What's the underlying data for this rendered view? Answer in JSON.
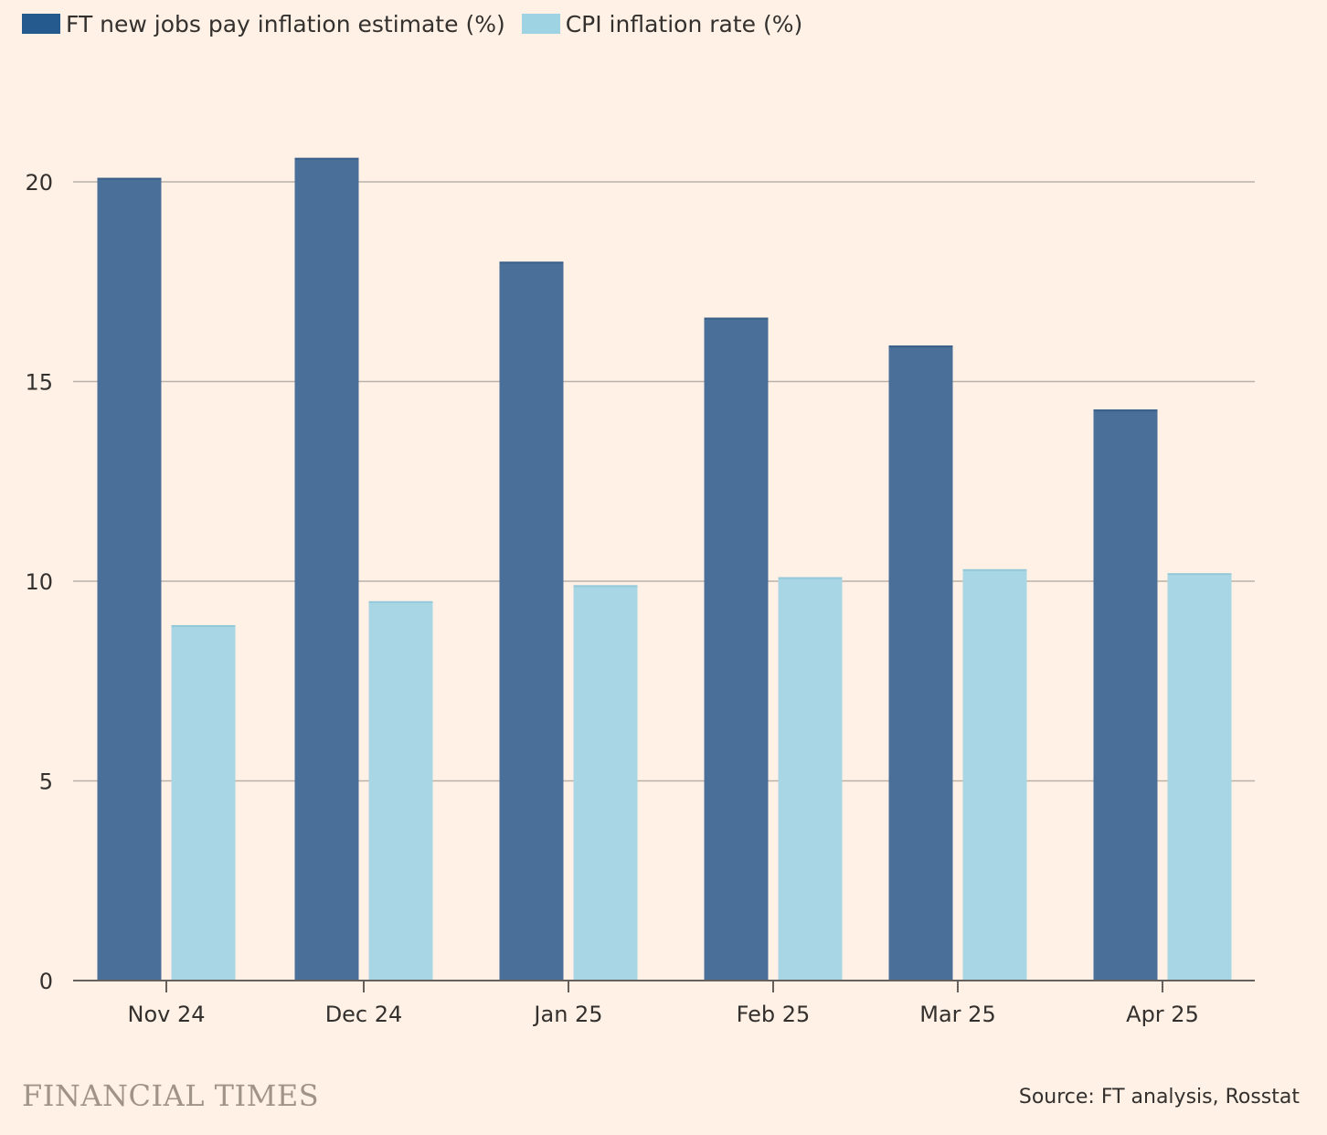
{
  "chart_data": {
    "type": "bar",
    "title": "",
    "xlabel": "",
    "ylabel": "",
    "categories": [
      "Nov 24",
      "Dec 24",
      "Jan 25",
      "Feb 25",
      "Mar 25",
      "Apr 25"
    ],
    "series": [
      {
        "name": "FT new jobs pay inflation estimate (%)",
        "color": "#4a7099",
        "legend_color": "#245a8e",
        "values": [
          20.1,
          20.6,
          18.0,
          16.6,
          15.9,
          14.3
        ]
      },
      {
        "name": "CPI inflation rate (%)",
        "color": "#a9d6e4",
        "legend_color": "#9ed3e4",
        "values": [
          8.9,
          9.5,
          9.9,
          10.1,
          10.3,
          10.2
        ]
      }
    ],
    "ylim": [
      0,
      20
    ],
    "yticks": [
      "0",
      "5",
      "10",
      "15",
      "20"
    ],
    "grid": true,
    "legend_position": "top-left"
  },
  "footer": {
    "brand": "FINANCIAL TIMES",
    "source": "Source: FT analysis, Rosstat"
  }
}
